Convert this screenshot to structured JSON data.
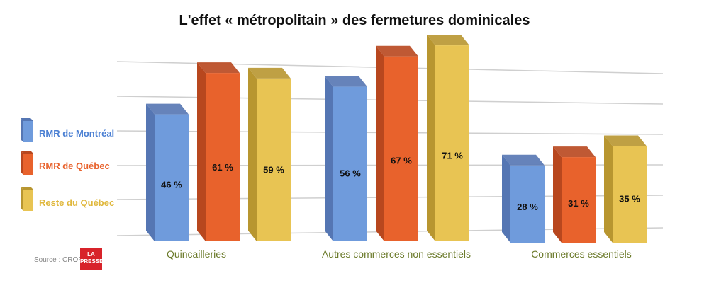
{
  "chart_data": {
    "type": "bar",
    "title": "L'effet « métropolitain » des fermetures dominicales",
    "categories": [
      "Quincailleries",
      "Autres commerces non essentiels",
      "Commerces essentiels"
    ],
    "series": [
      {
        "name": "RMR de Montréal",
        "values": [
          46,
          56,
          28
        ],
        "labels": [
          "46 %",
          "56 %",
          "28 %"
        ],
        "color": "#6f9bdc",
        "color_dark": "#5576b3"
      },
      {
        "name": "RMR de Québec",
        "values": [
          61,
          67,
          31
        ],
        "labels": [
          "61 %",
          "67 %",
          "31 %"
        ],
        "color": "#e8622c",
        "color_dark": "#b8471e"
      },
      {
        "name": "Reste du Québec",
        "values": [
          59,
          71,
          35
        ],
        "labels": [
          "59 %",
          "71 %",
          "35 %"
        ],
        "color": "#e8c453",
        "color_dark": "#b89630"
      }
    ],
    "legend_position": "left",
    "grid": true,
    "category_label_color": "#6b7a2a"
  },
  "source": "Source : CROP",
  "logo": {
    "line1": "LA",
    "line2": "PRESSE"
  }
}
